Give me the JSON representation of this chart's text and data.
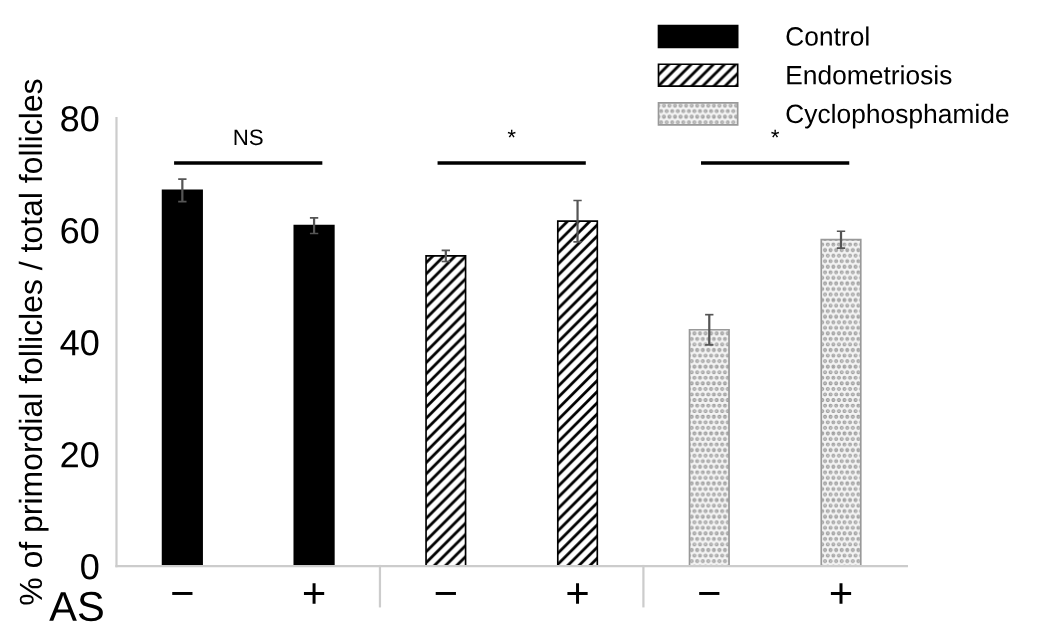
{
  "chart_data": {
    "type": "bar",
    "ylabel": "% of primordial follicles / total follicles",
    "xlabel": "AS",
    "categories": [
      "−",
      "+",
      "−",
      "+",
      "−",
      "+"
    ],
    "series": [
      {
        "name": "Control",
        "color": "#000000",
        "values": [
          67.1,
          60.8,
          null,
          null,
          null,
          null
        ],
        "errors": [
          2.0,
          1.4,
          null,
          null,
          null,
          null
        ]
      },
      {
        "name": "Endometriosis",
        "color": "#000000",
        "values": [
          null,
          null,
          55.4,
          61.6,
          null,
          null
        ],
        "errors": [
          null,
          null,
          1.0,
          3.7,
          null,
          null
        ]
      },
      {
        "name": "Cyclophosphamide",
        "color": "#999999",
        "values": [
          null,
          null,
          null,
          null,
          42.2,
          58.3
        ],
        "errors": [
          null,
          null,
          null,
          null,
          2.7,
          1.5
        ]
      }
    ],
    "annotations": [
      "NS",
      "*",
      "*"
    ],
    "ylim": [
      0,
      80
    ],
    "yticks": [
      0,
      20,
      40,
      60,
      80
    ],
    "grid": false,
    "legend": "top right"
  }
}
